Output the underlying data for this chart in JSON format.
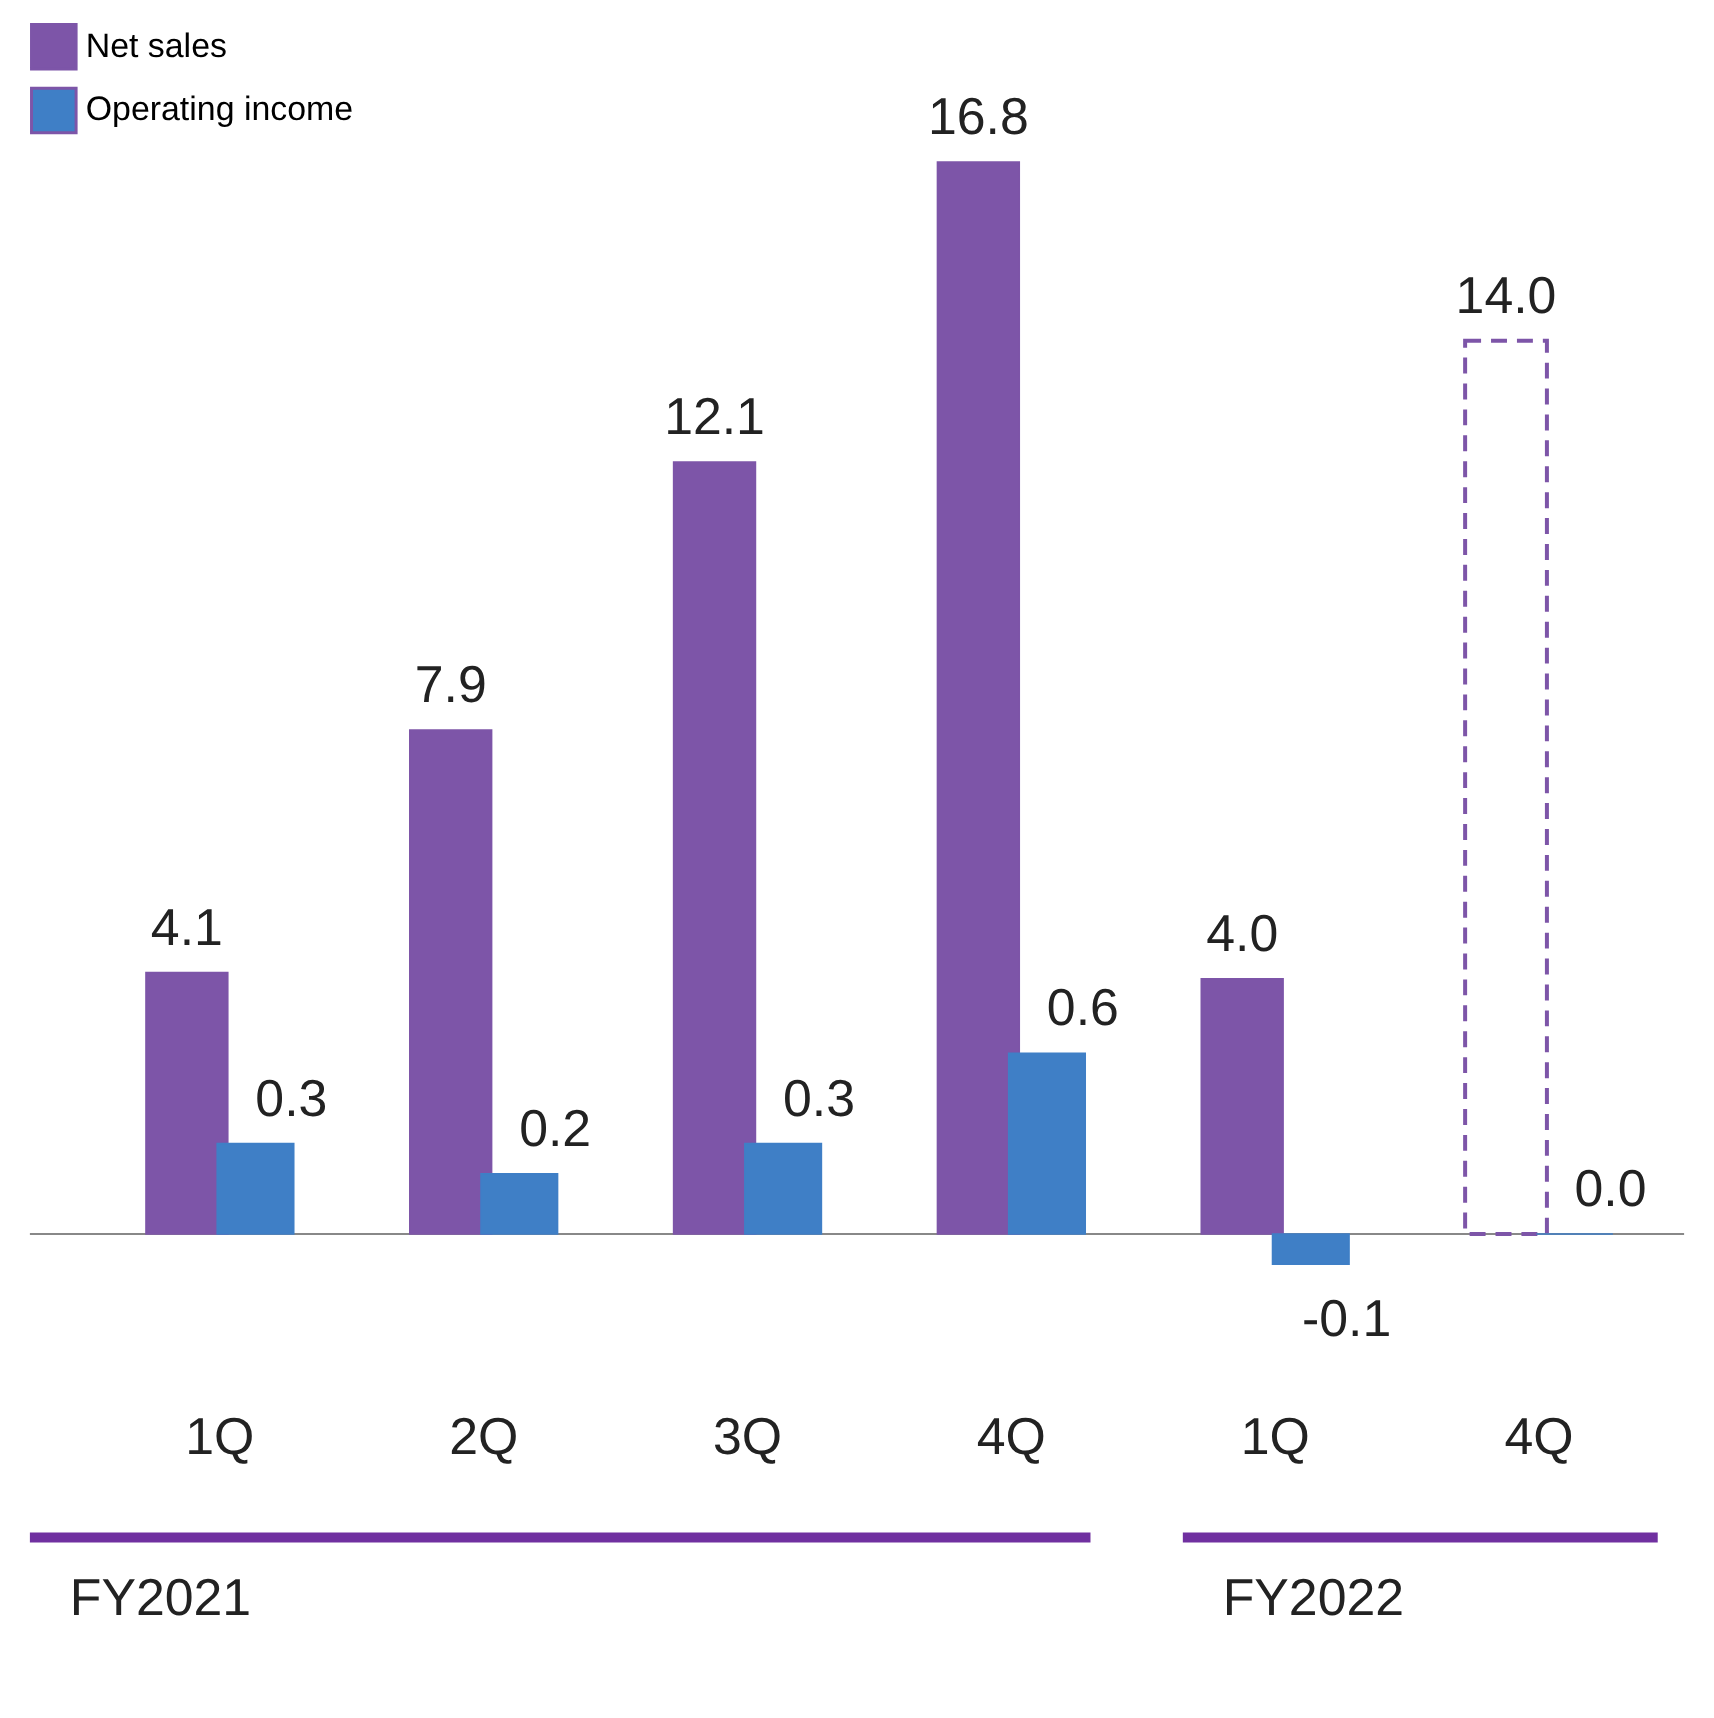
{
  "chart_data": {
    "type": "bar",
    "categories": [
      "1Q",
      "2Q",
      "3Q",
      "4Q",
      "1Q",
      "4Q"
    ],
    "series": [
      {
        "name": "Net sales",
        "color": "#7d55a8",
        "values": [
          4.1,
          7.9,
          12.1,
          16.8,
          4.0,
          null
        ],
        "value_labels": [
          "4.1",
          "7.9",
          "12.1",
          "16.8",
          "4.0",
          null
        ]
      },
      {
        "color": "#7d55a8",
        "line_style": "dashed",
        "values": [
          null,
          null,
          null,
          null,
          null,
          14.0
        ],
        "value_labels": [
          null,
          null,
          null,
          null,
          null,
          "14.0"
        ]
      },
      {
        "name": "Operating income",
        "color": "#3f7fc6",
        "axis": "y2",
        "values": [
          0.3,
          0.2,
          0.3,
          0.6,
          -0.1,
          0.0
        ],
        "value_labels": [
          "0.3",
          "0.2",
          "0.3",
          "0.6",
          "-0.1",
          "0.0"
        ]
      }
    ],
    "legend": "top left",
    "annotations": [
      "FY2021",
      "FY2022"
    ]
  }
}
